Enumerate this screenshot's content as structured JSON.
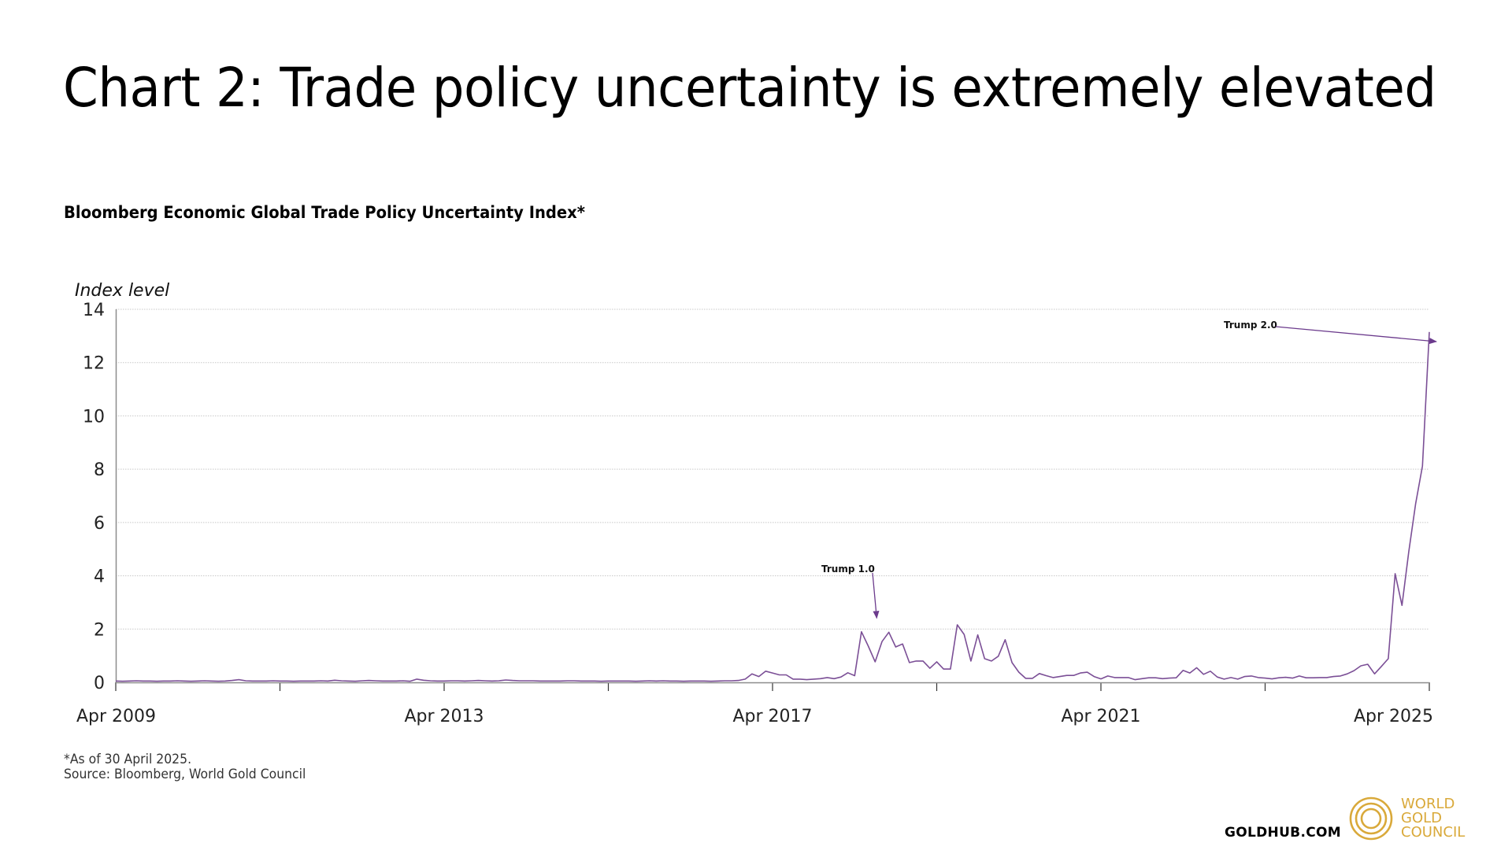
{
  "page": {
    "title": "Chart 2: Trade policy uncertainty is extremely elevated",
    "subtitle": "Bloomberg Economic Global Trade Policy Uncertainty Index*",
    "footnote_1": "*As of 30 April 2025.",
    "footnote_2": "Source: Bloomberg, World Gold Council",
    "goldhub": "GOLDHUB.COM",
    "logo_lines": [
      "WORLD",
      "GOLD",
      "COUNCIL"
    ]
  },
  "colors": {
    "series": "#7b4f96",
    "annotation": "#6b3a8c",
    "logo": "#d9a93a",
    "grid": "#c8c8c8",
    "axis": "#8c8c8c"
  },
  "chart_data": {
    "type": "line",
    "title": "Bloomberg Economic Global Trade Policy Uncertainty Index*",
    "ylabel": "Index level",
    "xlabel": "",
    "ylim": [
      0,
      14
    ],
    "yticks": [
      0,
      2,
      4,
      6,
      8,
      10,
      12,
      14
    ],
    "xrange": [
      "2009-04",
      "2025-04"
    ],
    "xtick_labels": [
      {
        "date": "2009-04",
        "label": "Apr 2009"
      },
      {
        "date": "2013-04",
        "label": "Apr 2013"
      },
      {
        "date": "2017-04",
        "label": "Apr 2017"
      },
      {
        "date": "2021-04",
        "label": "Apr 2021"
      },
      {
        "date": "2025-04",
        "label": "Apr 2025"
      }
    ],
    "xtick_minor": [
      "2011-04",
      "2015-04",
      "2019-04",
      "2023-04"
    ],
    "grid": true,
    "legend": "none",
    "series": [
      {
        "name": "Global Trade Policy Uncertainty Index",
        "start": "2009-04",
        "frequency": "monthly",
        "values": [
          0.03,
          0.04,
          0.05,
          0.05,
          0.04,
          0.03,
          0.06,
          0.08,
          0.06,
          0.05,
          0.07,
          0.06,
          0.04,
          0.04,
          0.05,
          0.05,
          0.06,
          0.05,
          0.04,
          0.04,
          0.06,
          0.05,
          0.04,
          0.07,
          0.05,
          0.05,
          0.04,
          0.05,
          0.05,
          0.04,
          0.05,
          0.06,
          0.05,
          0.05,
          0.04,
          0.05,
          0.05,
          0.06,
          0.05,
          0.04,
          0.05,
          0.06,
          0.05,
          0.04,
          0.05,
          0.07,
          0.1,
          0.06,
          0.05,
          0.05,
          0.05,
          0.06,
          0.05,
          0.05,
          0.04,
          0.05,
          0.05,
          0.05,
          0.06,
          0.05,
          0.08,
          0.06,
          0.05,
          0.04,
          0.06,
          0.07,
          0.06,
          0.05,
          0.05,
          0.05,
          0.06,
          0.04,
          0.12,
          0.08,
          0.06,
          0.05,
          0.05,
          0.06,
          0.06,
          0.05,
          0.06,
          0.07,
          0.06,
          0.05,
          0.06,
          0.09,
          0.07,
          0.06,
          0.06,
          0.06,
          0.05,
          0.05,
          0.05,
          0.05,
          0.06,
          0.06,
          0.05,
          0.05,
          0.05,
          0.04,
          0.05,
          0.05,
          0.05,
          0.05,
          0.04,
          0.05,
          0.06,
          0.05,
          0.06,
          0.05,
          0.05,
          0.04,
          0.05,
          0.05,
          0.05,
          0.04,
          0.05,
          0.06,
          0.06,
          0.07,
          0.12,
          0.32,
          0.22,
          0.42,
          0.35,
          0.28,
          0.28,
          0.12,
          0.12,
          0.1,
          0.12,
          0.14,
          0.18,
          0.14,
          0.2,
          0.36,
          0.25,
          1.9,
          1.36,
          0.77,
          1.53,
          1.88,
          1.33,
          1.44,
          0.74,
          0.8,
          0.8,
          0.53,
          0.77,
          0.5,
          0.5,
          2.16,
          1.8,
          0.8,
          1.78,
          0.89,
          0.8,
          0.98,
          1.6,
          0.74,
          0.38,
          0.15,
          0.15,
          0.33,
          0.25,
          0.18,
          0.22,
          0.26,
          0.26,
          0.35,
          0.38,
          0.22,
          0.13,
          0.24,
          0.18,
          0.18,
          0.18,
          0.1,
          0.14,
          0.17,
          0.17,
          0.14,
          0.16,
          0.17,
          0.45,
          0.35,
          0.55,
          0.3,
          0.42,
          0.2,
          0.12,
          0.18,
          0.12,
          0.22,
          0.24
        ]
      }
    ],
    "tail_values": [
      0.18,
      0.16,
      0.13,
      0.17,
      0.19,
      0.16,
      0.24,
      0.17,
      0.17,
      0.18,
      0.18,
      0.22,
      0.24,
      0.32,
      0.44,
      0.62,
      0.68,
      0.32,
      0.6,
      0.89,
      4.08,
      2.89,
      4.9,
      6.7,
      8.12,
      13.15
    ],
    "annotations": [
      {
        "text": "Trump 1.0",
        "target_date": "2018-07",
        "target_value": 2.5
      },
      {
        "text": "Trump 2.0",
        "target_date": "2025-03",
        "target_value": 13.0
      }
    ]
  }
}
